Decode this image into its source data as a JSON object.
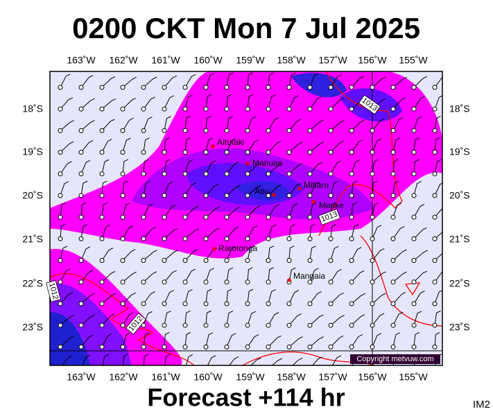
{
  "header": {
    "title": "0200 CKT Mon 7 Jul 2025"
  },
  "map": {
    "lon_ticks": [
      "163˚W",
      "162˚W",
      "161˚W",
      "160˚W",
      "159˚W",
      "158˚W",
      "157˚W",
      "156˚W",
      "155˚W"
    ],
    "lat_ticks": [
      "18˚S",
      "19˚S",
      "20˚S",
      "21˚S",
      "22˚S",
      "23˚S"
    ],
    "places": [
      "Aitutaki",
      "Manuae",
      "Atiu",
      "Mitiaro",
      "Mauke",
      "Rarotonga",
      "Mangaia"
    ],
    "isobar_labels": [
      "1013",
      "1013",
      "1012",
      "1012"
    ],
    "copyright": "Copyright metvuw.com"
  },
  "footer": {
    "forecast": "Forecast +114 hr",
    "code": "IM2"
  }
}
